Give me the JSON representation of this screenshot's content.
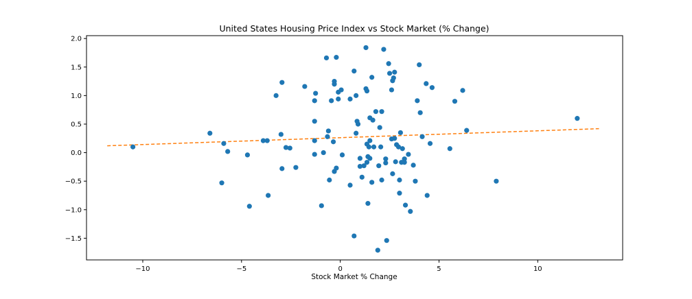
{
  "chart_data": {
    "type": "scatter",
    "title": "United States Housing Price Index vs Stock Market (% Change)",
    "xlabel": "Stock Market % Change",
    "ylabel": "",
    "xlim": [
      -12.85,
      14.3
    ],
    "ylim": [
      -1.88,
      2.05
    ],
    "xticks": [
      -10,
      -5,
      0,
      5,
      10
    ],
    "yticks": [
      -1.5,
      -1.0,
      -0.5,
      0.0,
      0.5,
      1.0,
      1.5,
      2.0
    ],
    "xtick_labels": [
      "−10",
      "−5",
      "0",
      "5",
      "10"
    ],
    "ytick_labels": [
      "−1.5",
      "−1.0",
      "−0.5",
      "0.0",
      "0.5",
      "1.0",
      "1.5",
      "2.0"
    ],
    "grid": false,
    "colors": {
      "points": "#1f77b4",
      "trendline": "#ff7f0e",
      "axes": "#000000",
      "background": "#ffffff"
    },
    "points": [
      {
        "x": -10.5,
        "y": 0.1
      },
      {
        "x": -6.6,
        "y": 0.34
      },
      {
        "x": -6.0,
        "y": -0.53
      },
      {
        "x": -5.9,
        "y": 0.16
      },
      {
        "x": -5.7,
        "y": 0.02
      },
      {
        "x": -4.7,
        "y": -0.04
      },
      {
        "x": -4.6,
        "y": -0.94
      },
      {
        "x": -3.9,
        "y": 0.21
      },
      {
        "x": -3.7,
        "y": 0.21
      },
      {
        "x": -3.65,
        "y": -0.75
      },
      {
        "x": -3.25,
        "y": 1.0
      },
      {
        "x": -3.0,
        "y": 0.32
      },
      {
        "x": -2.95,
        "y": 1.23
      },
      {
        "x": -2.95,
        "y": -0.28
      },
      {
        "x": -2.75,
        "y": 0.09
      },
      {
        "x": -2.55,
        "y": 0.08
      },
      {
        "x": -2.25,
        "y": -0.26
      },
      {
        "x": -1.8,
        "y": 1.16
      },
      {
        "x": -1.3,
        "y": 0.91
      },
      {
        "x": -1.3,
        "y": 0.55
      },
      {
        "x": -1.3,
        "y": 0.21
      },
      {
        "x": -1.3,
        "y": -0.03
      },
      {
        "x": -1.25,
        "y": 1.04
      },
      {
        "x": -0.95,
        "y": -0.93
      },
      {
        "x": -0.85,
        "y": 0.0
      },
      {
        "x": -0.7,
        "y": 1.66
      },
      {
        "x": -0.65,
        "y": 0.28
      },
      {
        "x": -0.6,
        "y": 0.38
      },
      {
        "x": -0.55,
        "y": -0.48
      },
      {
        "x": -0.45,
        "y": 0.91
      },
      {
        "x": -0.35,
        "y": 0.19
      },
      {
        "x": -0.3,
        "y": 1.25
      },
      {
        "x": -0.3,
        "y": 1.2
      },
      {
        "x": -0.3,
        "y": -0.33
      },
      {
        "x": -0.2,
        "y": 1.67
      },
      {
        "x": -0.2,
        "y": -0.27
      },
      {
        "x": -0.1,
        "y": 1.06
      },
      {
        "x": -0.1,
        "y": 0.94
      },
      {
        "x": 0.05,
        "y": 1.1
      },
      {
        "x": 0.1,
        "y": -0.04
      },
      {
        "x": 0.5,
        "y": 0.94
      },
      {
        "x": 0.5,
        "y": -0.57
      },
      {
        "x": 0.7,
        "y": 1.43
      },
      {
        "x": 0.7,
        "y": -1.46
      },
      {
        "x": 0.8,
        "y": 0.34
      },
      {
        "x": 0.8,
        "y": 1.0
      },
      {
        "x": 0.85,
        "y": 0.55
      },
      {
        "x": 0.9,
        "y": 0.5
      },
      {
        "x": 1.0,
        "y": -0.1
      },
      {
        "x": 1.0,
        "y": -0.24
      },
      {
        "x": 1.1,
        "y": -0.43
      },
      {
        "x": 1.2,
        "y": -0.23
      },
      {
        "x": 1.3,
        "y": 1.84
      },
      {
        "x": 1.3,
        "y": 1.12
      },
      {
        "x": 1.35,
        "y": 1.08
      },
      {
        "x": 1.35,
        "y": 0.15
      },
      {
        "x": 1.35,
        "y": -0.17
      },
      {
        "x": 1.4,
        "y": -0.07
      },
      {
        "x": 1.4,
        "y": -0.89
      },
      {
        "x": 1.45,
        "y": 0.1
      },
      {
        "x": 1.5,
        "y": 0.21
      },
      {
        "x": 1.5,
        "y": -0.1
      },
      {
        "x": 1.5,
        "y": 0.61
      },
      {
        "x": 1.6,
        "y": 1.32
      },
      {
        "x": 1.6,
        "y": -0.52
      },
      {
        "x": 1.65,
        "y": 0.57
      },
      {
        "x": 1.7,
        "y": 0.1
      },
      {
        "x": 1.8,
        "y": 0.72
      },
      {
        "x": 1.9,
        "y": -1.71
      },
      {
        "x": 1.95,
        "y": -0.23
      },
      {
        "x": 2.0,
        "y": 0.44
      },
      {
        "x": 2.05,
        "y": 0.1
      },
      {
        "x": 2.1,
        "y": 0.72
      },
      {
        "x": 2.1,
        "y": -0.48
      },
      {
        "x": 2.2,
        "y": 1.81
      },
      {
        "x": 2.3,
        "y": -0.11
      },
      {
        "x": 2.3,
        "y": -0.18
      },
      {
        "x": 2.35,
        "y": -1.54
      },
      {
        "x": 2.45,
        "y": 1.56
      },
      {
        "x": 2.5,
        "y": 1.39
      },
      {
        "x": 2.6,
        "y": 1.1
      },
      {
        "x": 2.6,
        "y": 0.24
      },
      {
        "x": 2.65,
        "y": 1.26
      },
      {
        "x": 2.65,
        "y": -0.37
      },
      {
        "x": 2.7,
        "y": 1.31
      },
      {
        "x": 2.75,
        "y": 1.41
      },
      {
        "x": 2.75,
        "y": 0.25
      },
      {
        "x": 2.8,
        "y": -0.16
      },
      {
        "x": 2.85,
        "y": 0.14
      },
      {
        "x": 2.95,
        "y": 0.1
      },
      {
        "x": 3.0,
        "y": -0.71
      },
      {
        "x": 3.0,
        "y": -0.48
      },
      {
        "x": 3.05,
        "y": 0.35
      },
      {
        "x": 3.1,
        "y": -0.17
      },
      {
        "x": 3.15,
        "y": 0.07
      },
      {
        "x": 3.25,
        "y": -0.11
      },
      {
        "x": 3.25,
        "y": -0.17
      },
      {
        "x": 3.3,
        "y": -0.92
      },
      {
        "x": 3.45,
        "y": -0.03
      },
      {
        "x": 3.55,
        "y": -1.03
      },
      {
        "x": 3.7,
        "y": -0.22
      },
      {
        "x": 3.8,
        "y": -0.5
      },
      {
        "x": 3.9,
        "y": 0.91
      },
      {
        "x": 4.0,
        "y": 1.54
      },
      {
        "x": 4.05,
        "y": 0.7
      },
      {
        "x": 4.15,
        "y": 0.28
      },
      {
        "x": 4.35,
        "y": 1.21
      },
      {
        "x": 4.4,
        "y": -0.75
      },
      {
        "x": 4.55,
        "y": 0.16
      },
      {
        "x": 4.65,
        "y": 1.14
      },
      {
        "x": 5.55,
        "y": 0.07
      },
      {
        "x": 5.8,
        "y": 0.9
      },
      {
        "x": 6.2,
        "y": 1.09
      },
      {
        "x": 6.4,
        "y": 0.39
      },
      {
        "x": 7.9,
        "y": -0.5
      },
      {
        "x": 12.0,
        "y": 0.6
      }
    ],
    "trendline": {
      "style": "dashed",
      "x": [
        -11.8,
        13.1
      ],
      "y": [
        0.12,
        0.42
      ]
    }
  }
}
